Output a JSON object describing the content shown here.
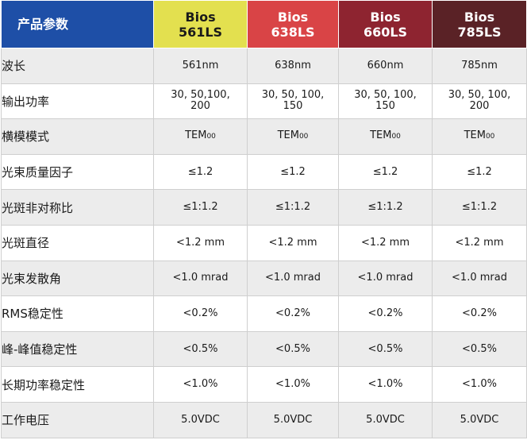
{
  "header": {
    "label": "产品参数",
    "models": [
      {
        "line1": "Bios",
        "line2": "561LS",
        "color": "#e3e04f",
        "text_color": "#1a1a1a"
      },
      {
        "line1": "Bios",
        "line2": "638LS",
        "color": "#d94446",
        "text_color": "#ffffff"
      },
      {
        "line1": "Bios",
        "line2": "660LS",
        "color": "#8e2430",
        "text_color": "#ffffff"
      },
      {
        "line1": "Bios",
        "line2": "785LS",
        "color": "#5a2226",
        "text_color": "#ffffff"
      }
    ]
  },
  "rows": [
    {
      "label": "波长",
      "values": [
        "561nm",
        "638nm",
        "660nm",
        "785nm"
      ]
    },
    {
      "label": "输出功率",
      "values": [
        [
          "30, 50,100,",
          "200"
        ],
        [
          "30, 50, 100,",
          "150"
        ],
        [
          "30, 50, 100,",
          "150"
        ],
        [
          "30, 50, 100,",
          "200"
        ]
      ]
    },
    {
      "label": "横模模式",
      "values": [
        "TEM",
        "TEM",
        "TEM",
        "TEM"
      ],
      "sub": "00"
    },
    {
      "label": "光束质量因子",
      "values": [
        "≤1.2",
        "≤1.2",
        "≤1.2",
        "≤1.2"
      ]
    },
    {
      "label": "光斑非对称比",
      "values": [
        "≤1:1.2",
        "≤1:1.2",
        "≤1:1.2",
        "≤1:1.2"
      ]
    },
    {
      "label": "光斑直径",
      "values": [
        "<1.2 mm",
        "<1.2 mm",
        "<1.2 mm",
        "<1.2 mm"
      ]
    },
    {
      "label": "光束发散角",
      "values": [
        "<1.0 mrad",
        "<1.0 mrad",
        "<1.0 mrad",
        "<1.0 mrad"
      ]
    },
    {
      "label": "RMS稳定性",
      "values": [
        "<0.2%",
        "<0.2%",
        "<0.2%",
        "<0.2%"
      ]
    },
    {
      "label": "峰-峰值稳定性",
      "values": [
        "<0.5%",
        "<0.5%",
        "<0.5%",
        "<0.5%"
      ]
    },
    {
      "label": "长期功率稳定性",
      "values": [
        "<1.0%",
        "<1.0%",
        "<1.0%",
        "<1.0%"
      ]
    },
    {
      "label": "工作电压",
      "values": [
        "5.0VDC",
        "5.0VDC",
        "5.0VDC",
        "5.0VDC"
      ]
    }
  ]
}
